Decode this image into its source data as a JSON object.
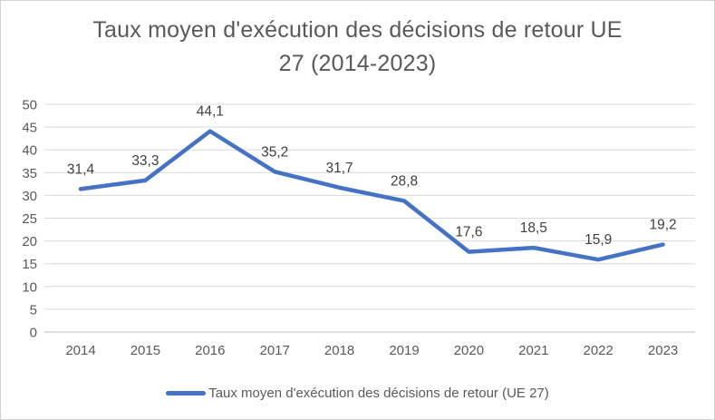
{
  "chart": {
    "title_lines": [
      "Taux moyen d'exécution des décisions de retour UE",
      "27 (2014-2023)"
    ]
  },
  "chart_data": {
    "type": "line",
    "title": "Taux moyen d'exécution des décisions de retour UE 27 (2014-2023)",
    "categories": [
      "2014",
      "2015",
      "2016",
      "2017",
      "2018",
      "2019",
      "2020",
      "2021",
      "2022",
      "2023"
    ],
    "series": [
      {
        "name": "Taux moyen d'exécution des décisions de retour (UE 27)",
        "values": [
          31.4,
          33.3,
          44.1,
          35.2,
          31.7,
          28.8,
          17.6,
          18.5,
          15.9,
          19.2
        ],
        "labels": [
          "31,4",
          "33,3",
          "44,1",
          "35,2",
          "31,7",
          "28,8",
          "17,6",
          "18,5",
          "15,9",
          "19,2"
        ]
      }
    ],
    "xlabel": "",
    "ylabel": "",
    "ylim": [
      0,
      50
    ],
    "yticks": [
      0,
      5,
      10,
      15,
      20,
      25,
      30,
      35,
      40,
      45,
      50
    ],
    "grid": "horizontal",
    "legend_position": "bottom",
    "colors": {
      "line": "#4472C4",
      "gridline": "#D9D9D9",
      "axis_line": "#BFBFBF",
      "tick_label": "#595959",
      "data_label": "#404040",
      "title": "#595959",
      "legend_label": "#595959"
    }
  }
}
